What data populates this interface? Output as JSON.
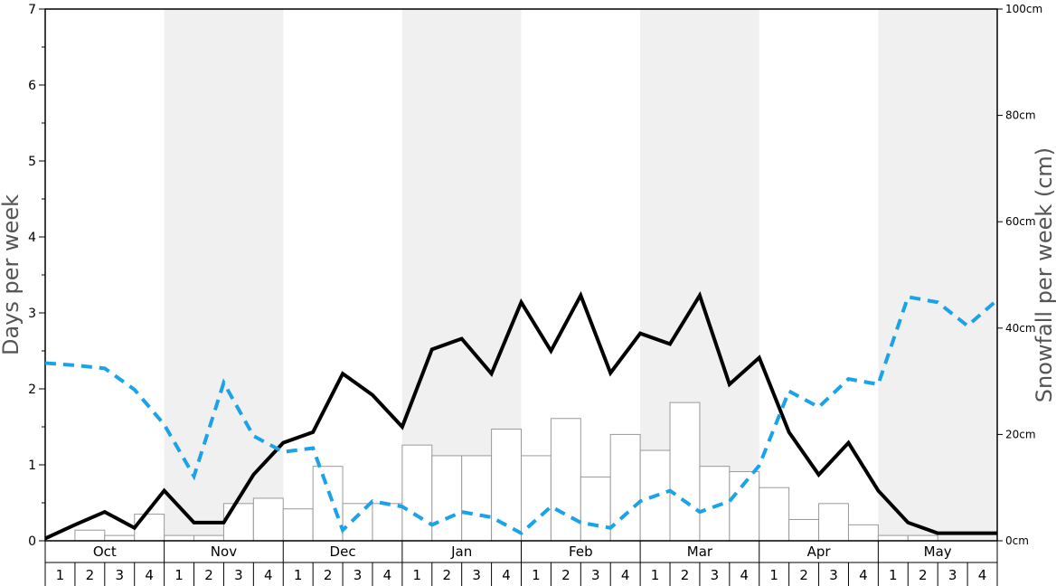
{
  "chart_data": {
    "type": "bar",
    "ylabel_left": "Days per week",
    "ylabel_right": "Snowfall per week (cm)",
    "y_left_range": [
      0,
      7
    ],
    "y_left_ticks": [
      "0",
      "1",
      "2",
      "3",
      "4",
      "5",
      "6",
      "7"
    ],
    "y_right_range": [
      0,
      100
    ],
    "y_right_ticks": [
      "0cm",
      "20cm",
      "40cm",
      "60cm",
      "80cm",
      "100cm"
    ],
    "months": [
      "Oct",
      "Nov",
      "Dec",
      "Jan",
      "Feb",
      "Mar",
      "Apr",
      "May"
    ],
    "week_labels": [
      "1",
      "2",
      "3",
      "4"
    ],
    "colors": {
      "bars_fill": "#ffffff",
      "bars_stroke": "#999999",
      "solid_line": "#000000",
      "dashed_line": "#1aa3e8",
      "shade_band": "#f0f0f0"
    },
    "series": [
      {
        "type": "bar",
        "axis": "right",
        "values": [
          0,
          2,
          1,
          5,
          1,
          1,
          7,
          8,
          6,
          14,
          7,
          7,
          18,
          16,
          16,
          21,
          16,
          23,
          12,
          20,
          17,
          26,
          14,
          13,
          10,
          4,
          7,
          3,
          1,
          1,
          0,
          0
        ]
      },
      {
        "type": "line",
        "style": "solid",
        "axis": "left",
        "values": [
          0.03,
          0.21,
          0.38,
          0.17,
          0.66,
          0.24,
          0.24,
          0.87,
          1.29,
          1.43,
          2.2,
          1.92,
          1.5,
          2.52,
          2.66,
          2.2,
          3.14,
          2.5,
          3.23,
          2.21,
          2.73,
          2.59,
          3.23,
          2.06,
          2.41,
          1.43,
          0.87,
          1.29,
          0.66,
          0.24,
          0.1,
          0.1,
          0.1
        ]
      },
      {
        "type": "line",
        "style": "dashed",
        "axis": "left",
        "values": [
          2.34,
          2.31,
          2.27,
          1.99,
          1.53,
          0.85,
          2.08,
          1.38,
          1.17,
          1.22,
          0.14,
          0.52,
          0.45,
          0.21,
          0.38,
          0.31,
          0.1,
          0.45,
          0.24,
          0.17,
          0.52,
          0.66,
          0.38,
          0.52,
          0.99,
          1.97,
          1.76,
          2.13,
          2.06,
          3.21,
          3.14,
          2.83,
          3.17
        ]
      }
    ]
  }
}
